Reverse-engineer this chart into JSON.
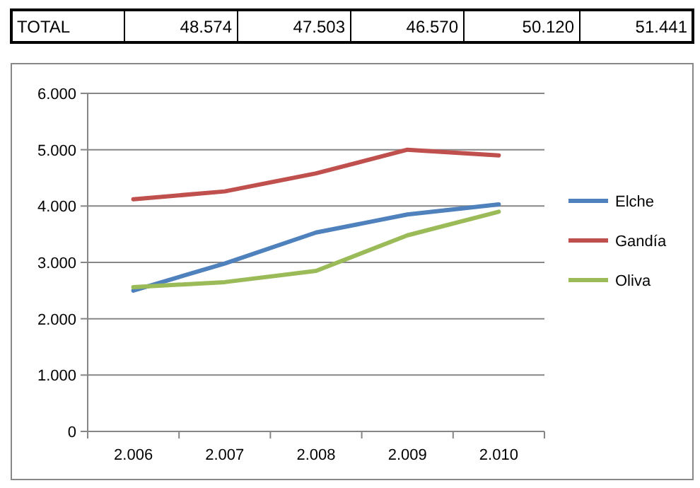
{
  "chart_data": {
    "type": "line",
    "categories": [
      "2.006",
      "2.007",
      "2.008",
      "2.009",
      "2.010"
    ],
    "series": [
      {
        "name": "Elche",
        "color": "#4f81bd",
        "values": [
          2500,
          2980,
          3530,
          3850,
          4030
        ]
      },
      {
        "name": "Gandía",
        "color": "#c0504d",
        "values": [
          4120,
          4260,
          4580,
          5000,
          4900
        ]
      },
      {
        "name": "Oliva",
        "color": "#9bbb59",
        "values": [
          2560,
          2650,
          2850,
          3480,
          3900
        ]
      }
    ],
    "ylim": [
      0,
      6000
    ],
    "yticks": [
      {
        "value": 0,
        "label": "0"
      },
      {
        "value": 1000,
        "label": "1.000"
      },
      {
        "value": 2000,
        "label": "2.000"
      },
      {
        "value": 3000,
        "label": "3.000"
      },
      {
        "value": 4000,
        "label": "4.000"
      },
      {
        "value": 5000,
        "label": "5.000"
      },
      {
        "value": 6000,
        "label": "6.000"
      }
    ],
    "grid": "y",
    "legend": "right",
    "marker": "none",
    "line_style": "solid",
    "annotations": [
      "TOTAL",
      "48.574",
      "47.503",
      "46.570",
      "50.120",
      "51.441"
    ]
  }
}
